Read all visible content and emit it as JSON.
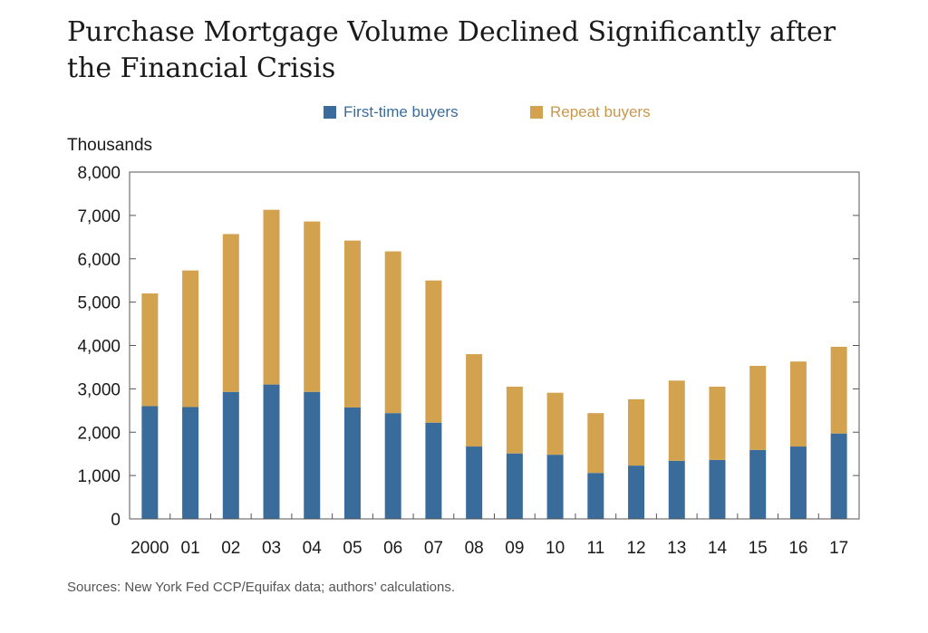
{
  "colors": {
    "first_time": "#3a6c9b",
    "repeat": "#d2a24f",
    "first_time_text": "#3a6c9b",
    "repeat_text": "#c9974a"
  },
  "chart_data": {
    "type": "bar",
    "stacked": true,
    "title": "Purchase Mortgage Volume Declined Significantly after the Financial Crisis",
    "ylabel": "Thousands",
    "xlabel": "",
    "ylim": [
      0,
      8000
    ],
    "yticks": [
      0,
      1000,
      2000,
      3000,
      4000,
      5000,
      6000,
      7000,
      8000
    ],
    "ytick_labels": [
      "0",
      "1,000",
      "2,000",
      "3,000",
      "4,000",
      "5,000",
      "6,000",
      "7,000",
      "8,000"
    ],
    "categories": [
      "2000",
      "01",
      "02",
      "03",
      "04",
      "05",
      "06",
      "07",
      "08",
      "09",
      "10",
      "11",
      "12",
      "13",
      "14",
      "15",
      "16",
      "17"
    ],
    "series": [
      {
        "name": "First-time buyers",
        "values": [
          2600,
          2580,
          2930,
          3100,
          2930,
          2570,
          2440,
          2220,
          1670,
          1510,
          1480,
          1060,
          1230,
          1340,
          1360,
          1590,
          1670,
          1970
        ]
      },
      {
        "name": "Repeat buyers",
        "values": [
          2600,
          3150,
          3640,
          4030,
          3930,
          3850,
          3730,
          3280,
          2130,
          1540,
          1430,
          1380,
          1530,
          1850,
          1690,
          1940,
          1960,
          2000
        ]
      }
    ],
    "legend_position": "top-center",
    "grid": false,
    "source": "Sources: New York Fed CCP/Equifax data; authors’ calculations."
  }
}
